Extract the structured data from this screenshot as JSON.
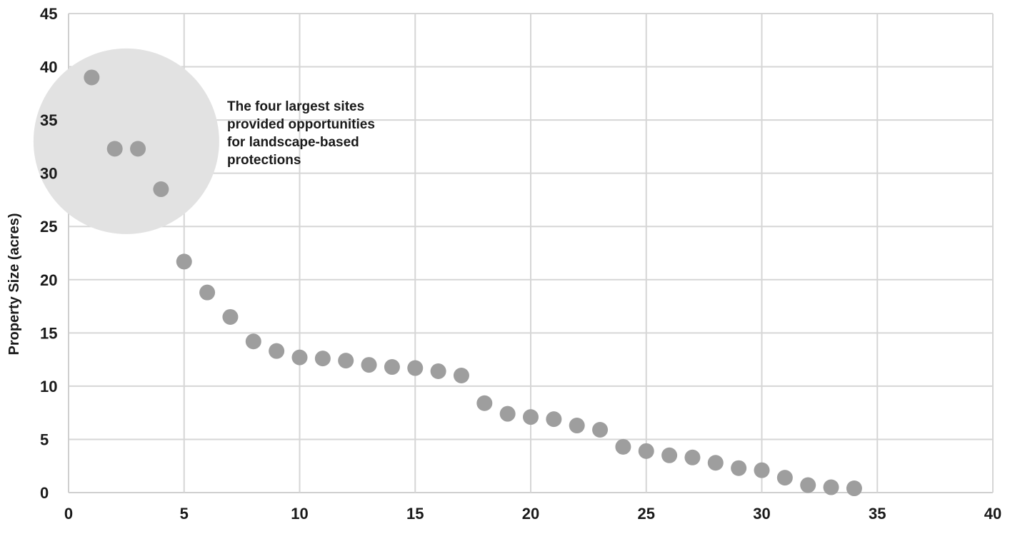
{
  "chart_data": {
    "type": "scatter",
    "title": "",
    "xlabel": "",
    "ylabel": "Property Size (acres)",
    "xlim": [
      0,
      40
    ],
    "ylim": [
      0,
      45
    ],
    "x_ticks": [
      0,
      5,
      10,
      15,
      20,
      25,
      30,
      35,
      40
    ],
    "y_ticks": [
      0,
      5,
      10,
      15,
      20,
      25,
      30,
      35,
      40,
      45
    ],
    "grid": true,
    "legend": "none",
    "series": [
      {
        "color": "#9e9e9e",
        "points": [
          {
            "x": 1,
            "y": 39
          },
          {
            "x": 2,
            "y": 32.3
          },
          {
            "x": 3,
            "y": 32.3
          },
          {
            "x": 4,
            "y": 28.5
          },
          {
            "x": 5,
            "y": 21.7
          },
          {
            "x": 6,
            "y": 18.8
          },
          {
            "x": 7,
            "y": 16.5
          },
          {
            "x": 8,
            "y": 14.2
          },
          {
            "x": 9,
            "y": 13.3
          },
          {
            "x": 10,
            "y": 12.7
          },
          {
            "x": 11,
            "y": 12.6
          },
          {
            "x": 12,
            "y": 12.4
          },
          {
            "x": 13,
            "y": 12.0
          },
          {
            "x": 14,
            "y": 11.8
          },
          {
            "x": 15,
            "y": 11.7
          },
          {
            "x": 16,
            "y": 11.4
          },
          {
            "x": 17,
            "y": 11.0
          },
          {
            "x": 18,
            "y": 8.4
          },
          {
            "x": 19,
            "y": 7.4
          },
          {
            "x": 20,
            "y": 7.1
          },
          {
            "x": 21,
            "y": 6.9
          },
          {
            "x": 22,
            "y": 6.3
          },
          {
            "x": 23,
            "y": 5.9
          },
          {
            "x": 24,
            "y": 4.3
          },
          {
            "x": 25,
            "y": 3.9
          },
          {
            "x": 26,
            "y": 3.5
          },
          {
            "x": 27,
            "y": 3.3
          },
          {
            "x": 28,
            "y": 2.8
          },
          {
            "x": 29,
            "y": 2.3
          },
          {
            "x": 30,
            "y": 2.1
          },
          {
            "x": 31,
            "y": 1.4
          },
          {
            "x": 32,
            "y": 0.7
          },
          {
            "x": 33,
            "y": 0.5
          },
          {
            "x": 34,
            "y": 0.4
          }
        ]
      }
    ],
    "annotation": {
      "lines": [
        "The four largest sites",
        "provided opportunities",
        "for landscape-based",
        "protections"
      ],
      "highlight": {
        "center_x": 2.5,
        "center_y": 33,
        "color": "#e2e2e2"
      }
    },
    "colors": {
      "grid": "#d6d6d6",
      "axis": "#cfcfcf",
      "point": "#9e9e9e",
      "highlight": "#e2e2e2"
    }
  }
}
